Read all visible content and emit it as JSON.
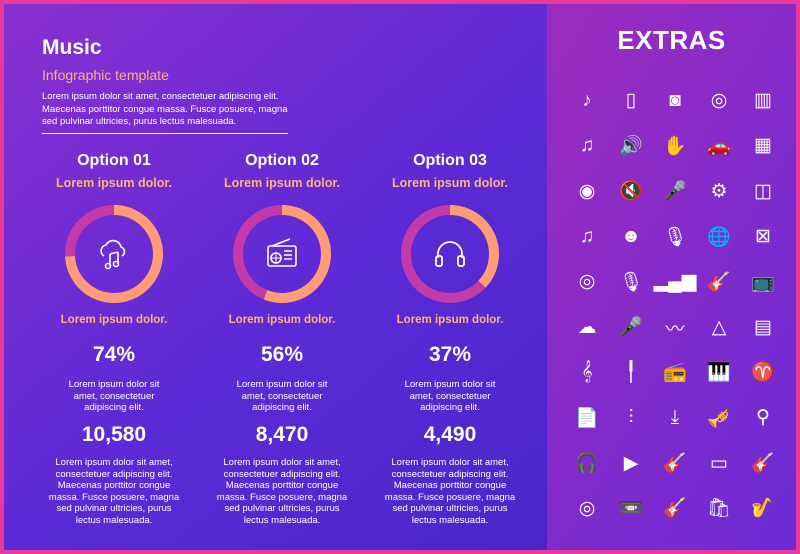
{
  "title": "Music",
  "subtitle": "Infographic template",
  "intro": "Lorem ipsum dolor sit amet, consectetuer adipiscing elit. Maecenas porttitor congue massa. Fusce posuere, magna sed pulvinar ultricies, purus lectus malesuada.",
  "options": [
    {
      "title": "Option 01",
      "subtitle": "Lorem ipsum dolor.",
      "caption": "Lorem ipsum dolor.",
      "percent": "74%",
      "percent_value": 74,
      "small_text": "Lorem ipsum dolor sit amet, consectetuer adipiscing elit.",
      "number": "10,580",
      "paragraph": "Lorem ipsum dolor sit amet, consectetuer adipiscing elit. Maecenas porttitor congue massa. Fusce posuere, magna sed pulvinar ultricies, purus lectus malesuada.",
      "icon": "cloud-music-icon"
    },
    {
      "title": "Option 02",
      "subtitle": "Lorem ipsum dolor.",
      "caption": "Lorem ipsum dolor.",
      "percent": "56%",
      "percent_value": 56,
      "small_text": "Lorem ipsum dolor sit amet, consectetuer adipiscing elit.",
      "number": "8,470",
      "paragraph": "Lorem ipsum dolor sit amet, consectetuer adipiscing elit. Maecenas porttitor congue massa. Fusce posuere, magna sed pulvinar ultricies, purus lectus malesuada.",
      "icon": "radio-icon"
    },
    {
      "title": "Option 03",
      "subtitle": "Lorem ipsum dolor.",
      "caption": "Lorem ipsum dolor.",
      "percent": "37%",
      "percent_value": 37,
      "small_text": "Lorem ipsum dolor sit amet, consectetuer adipiscing elit.",
      "number": "4,490",
      "paragraph": "Lorem ipsum dolor sit amet, consectetuer adipiscing elit. Maecenas porttitor congue massa. Fusce posuere, magna sed pulvinar ultricies, purus lectus malesuada.",
      "icon": "headphones-icon"
    }
  ],
  "extras": {
    "title": "EXTRAS",
    "icons": [
      {
        "name": "music-note-icon",
        "glyph": "♪"
      },
      {
        "name": "phone-music-icon",
        "glyph": "▯"
      },
      {
        "name": "speaker-icon",
        "glyph": "◙"
      },
      {
        "name": "turntable-icon",
        "glyph": "◎"
      },
      {
        "name": "xylophone-icon",
        "glyph": "▥"
      },
      {
        "name": "playlist-icon",
        "glyph": "♫"
      },
      {
        "name": "volume-icon",
        "glyph": "🔊"
      },
      {
        "name": "rock-hand-icon",
        "glyph": "✋"
      },
      {
        "name": "car-music-icon",
        "glyph": "🚗"
      },
      {
        "name": "pan-flute-icon",
        "glyph": "▦"
      },
      {
        "name": "cd-music-icon",
        "glyph": "◉"
      },
      {
        "name": "mute-icon",
        "glyph": "🔇"
      },
      {
        "name": "microphone-icon",
        "glyph": "🎤"
      },
      {
        "name": "settings-disc-icon",
        "glyph": "⚙"
      },
      {
        "name": "drum-icon",
        "glyph": "◫"
      },
      {
        "name": "double-note-icon",
        "glyph": "♫"
      },
      {
        "name": "dj-headphones-icon",
        "glyph": "☻"
      },
      {
        "name": "studio-mic-icon",
        "glyph": "🎙"
      },
      {
        "name": "globe-music-icon",
        "glyph": "🌐"
      },
      {
        "name": "snare-drum-icon",
        "glyph": "⊠"
      },
      {
        "name": "vinyl-icon",
        "glyph": "◎"
      },
      {
        "name": "retro-mic-icon",
        "glyph": "🎙"
      },
      {
        "name": "equalizer-icon",
        "glyph": "▂▄▆"
      },
      {
        "name": "guitar-icon",
        "glyph": "🎸"
      },
      {
        "name": "tv-music-icon",
        "glyph": "📺"
      },
      {
        "name": "cloud-music-icon",
        "glyph": "☁"
      },
      {
        "name": "handheld-mic-icon",
        "glyph": "🎤"
      },
      {
        "name": "sound-wave-icon",
        "glyph": "〰"
      },
      {
        "name": "balalaika-icon",
        "glyph": "△"
      },
      {
        "name": "accordion-icon",
        "glyph": "▤"
      },
      {
        "name": "treble-clef-icon",
        "glyph": "𝄞"
      },
      {
        "name": "audio-jack-icon",
        "glyph": "╿"
      },
      {
        "name": "radio-icon",
        "glyph": "📻"
      },
      {
        "name": "piano-icon",
        "glyph": "🎹"
      },
      {
        "name": "harp-icon",
        "glyph": "♈"
      },
      {
        "name": "music-file-icon",
        "glyph": "📄"
      },
      {
        "name": "mixer-sliders-icon",
        "glyph": "⫶"
      },
      {
        "name": "download-music-icon",
        "glyph": "⤓"
      },
      {
        "name": "trumpet-icon",
        "glyph": "🎺"
      },
      {
        "name": "maracas-icon",
        "glyph": "⚲"
      },
      {
        "name": "headphones-icon",
        "glyph": "🎧"
      },
      {
        "name": "media-player-icon",
        "glyph": "▶"
      },
      {
        "name": "acoustic-guitar-icon",
        "glyph": "🎸"
      },
      {
        "name": "tablet-music-icon",
        "glyph": "▭"
      },
      {
        "name": "electric-guitar-icon",
        "glyph": "🎸"
      },
      {
        "name": "disc-icon",
        "glyph": "◎"
      },
      {
        "name": "cassette-icon",
        "glyph": "📼"
      },
      {
        "name": "bass-guitar-icon",
        "glyph": "🎸"
      },
      {
        "name": "shopping-bag-music-icon",
        "glyph": "🛍"
      },
      {
        "name": "saxophone-icon",
        "glyph": "🎷"
      }
    ]
  },
  "colors": {
    "accent": "#ffb27a",
    "ring_track": "#c33aa8",
    "ring_fill": "#ff9c78"
  }
}
